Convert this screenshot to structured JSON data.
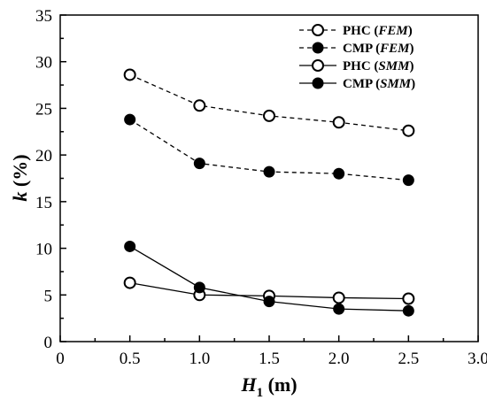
{
  "chart_data": {
    "type": "line",
    "x": [
      0.5,
      1.0,
      1.5,
      2.0,
      2.5
    ],
    "xlim": [
      0,
      3
    ],
    "ylim": [
      0,
      35
    ],
    "xticks": [
      "0",
      "0.5",
      "1.0",
      "1.5",
      "2.0",
      "2.5",
      "3.0"
    ],
    "yticks": [
      "0",
      "5",
      "10",
      "15",
      "20",
      "25",
      "30",
      "35"
    ],
    "xlabel": {
      "main": "H",
      "sub": "1",
      "unit": " (m)"
    },
    "ylabel": {
      "main": "k",
      "unit": " (%)"
    },
    "legend_position": "top-right",
    "grid": false,
    "series": [
      {
        "name": {
          "main": "PHC (",
          "method": "FEM",
          "close": ")"
        },
        "values": [
          28.6,
          25.3,
          24.2,
          23.5,
          22.6
        ],
        "marker": "open-circle",
        "line": "dashed"
      },
      {
        "name": {
          "main": "CMP (",
          "method": "FEM",
          "close": ")"
        },
        "values": [
          23.8,
          19.1,
          18.2,
          18.0,
          17.3
        ],
        "marker": "filled-circle",
        "line": "dashed"
      },
      {
        "name": {
          "main": "PHC (",
          "method": "SMM",
          "close": ")"
        },
        "values": [
          6.3,
          5.0,
          4.9,
          4.7,
          4.6
        ],
        "marker": "open-circle",
        "line": "solid"
      },
      {
        "name": {
          "main": "CMP (",
          "method": "SMM",
          "close": ")"
        },
        "values": [
          10.2,
          5.8,
          4.3,
          3.5,
          3.3
        ],
        "marker": "filled-circle",
        "line": "solid"
      }
    ]
  }
}
